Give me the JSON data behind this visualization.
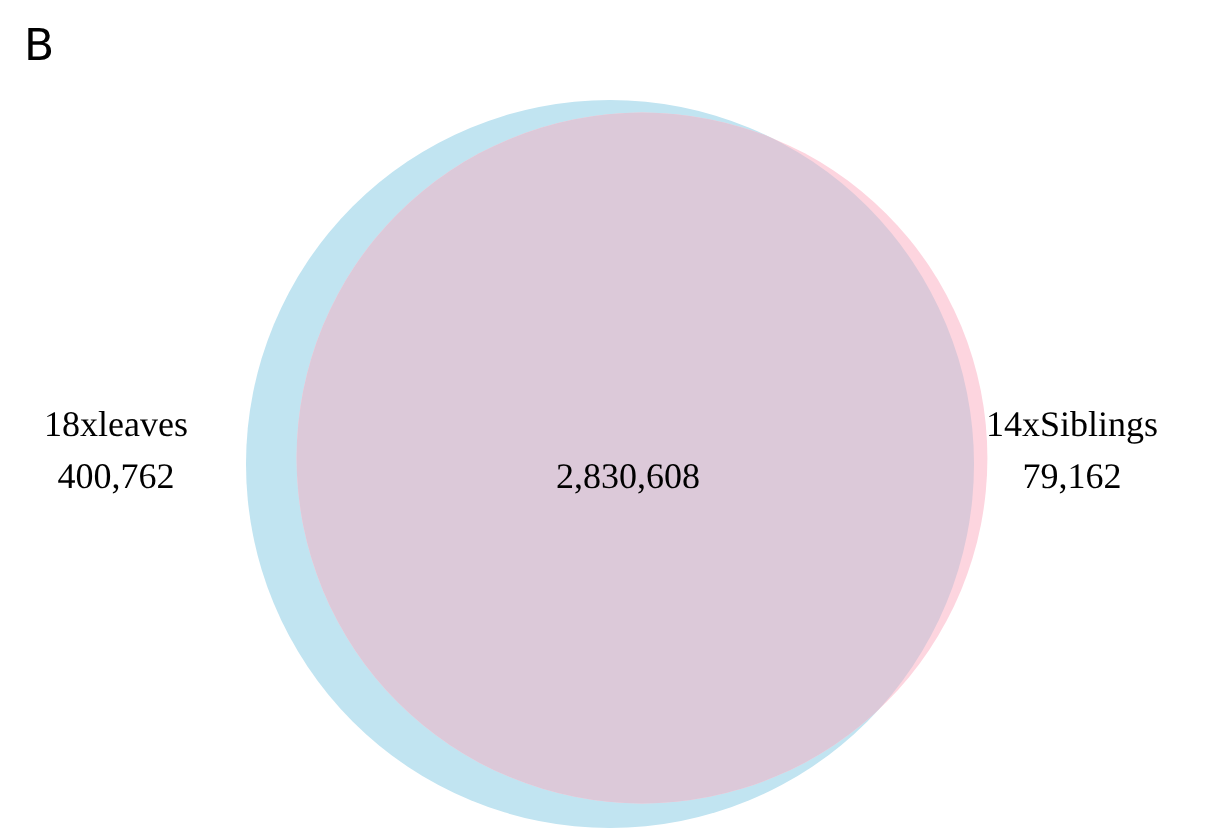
{
  "chart_data": {
    "type": "other",
    "title": "B",
    "categories": [
      "18xleaves",
      null,
      "14xSiblings"
    ],
    "values": [
      400762,
      2830608,
      79162
    ],
    "value_labels": [
      "400,762",
      "2,830,608",
      "79,162"
    ],
    "colors": [
      "#c1e4f1",
      "#dcc9d9",
      "#fdd5df"
    ]
  }
}
